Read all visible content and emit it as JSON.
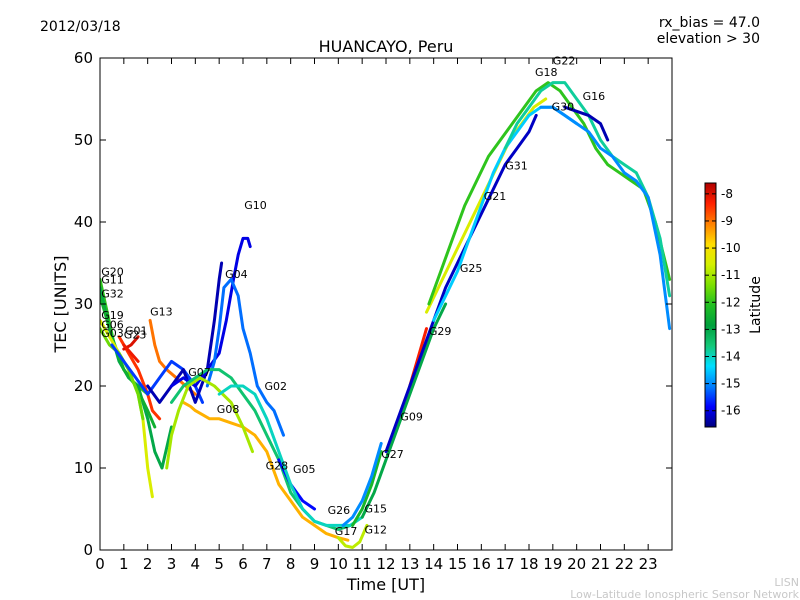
{
  "header": {
    "date": "2012/03/18",
    "rx_bias": "rx_bias = 47.0",
    "elevation": "elevation > 30"
  },
  "footer": {
    "org_short": "LISN",
    "org_long": "Low-Latitude Ionospheric Sensor Network"
  },
  "colorbar": {
    "label": "Latitude",
    "ticks": [
      "-8",
      "-9",
      "-10",
      "-11",
      "-12",
      "-13",
      "-14",
      "-15",
      "-16"
    ],
    "range": [
      -16.6,
      -7.6
    ],
    "colors": [
      "#00007f",
      "#0000ff",
      "#007fff",
      "#00dfff",
      "#14c878",
      "#00a03c",
      "#22c022",
      "#7ee000",
      "#d4f000",
      "#ffdc00",
      "#ff8000",
      "#ff2000",
      "#b00000"
    ]
  },
  "chart_data": {
    "type": "line",
    "title": "HUANCAYO, Peru",
    "xlabel": "Time [UT]",
    "ylabel": "TEC [UNITS]",
    "xlim": [
      0,
      24
    ],
    "ylim": [
      0,
      60
    ],
    "xticks": [
      "0",
      "1",
      "2",
      "3",
      "4",
      "5",
      "6",
      "7",
      "8",
      "9",
      "10",
      "11",
      "12",
      "13",
      "14",
      "15",
      "16",
      "17",
      "18",
      "19",
      "20",
      "21",
      "22",
      "23"
    ],
    "yticks": [
      "0",
      "10",
      "20",
      "30",
      "40",
      "50",
      "60"
    ],
    "grid": false,
    "colorbar_label": "Latitude",
    "series": [
      {
        "name": "G20",
        "lat": -12.0,
        "x": [
          0,
          0.3,
          0.6,
          1.0,
          1.4,
          1.8,
          2.0
        ],
        "y": [
          33,
          29,
          25,
          22,
          20.5,
          19.5,
          19
        ]
      },
      {
        "name": "G11",
        "lat": -13.0,
        "x": [
          0,
          0.4,
          0.8,
          1.2,
          1.6,
          2.0,
          2.3,
          2.6,
          3.0
        ],
        "y": [
          32,
          27,
          23,
          21,
          20,
          16,
          12,
          10,
          15
        ]
      },
      {
        "name": "G32",
        "lat": -12.5,
        "x": [
          0,
          0.5,
          1.0,
          1.5,
          2.0,
          2.3
        ],
        "y": [
          31,
          26,
          22,
          20,
          17,
          15
        ]
      },
      {
        "name": "G19",
        "lat": -10.5,
        "x": [
          0,
          0.4,
          0.8,
          1.2,
          1.6,
          1.8,
          2.0,
          2.2
        ],
        "y": [
          28,
          26,
          24,
          22,
          19,
          16,
          10,
          6.5
        ]
      },
      {
        "name": "G06",
        "lat": -11.5,
        "x": [
          0,
          0.4,
          0.8,
          1.2,
          1.6,
          1.8
        ],
        "y": [
          27,
          25,
          24,
          22,
          19,
          16
        ]
      },
      {
        "name": "G03",
        "lat": -8.5,
        "x": [
          0.8,
          1.2,
          1.6,
          2.0,
          2.2,
          2.5
        ],
        "y": [
          26,
          24,
          22,
          19,
          17,
          16
        ]
      },
      {
        "name": "G01",
        "lat": -8.0,
        "x": [
          1.0,
          1.3,
          1.6
        ],
        "y": [
          24.5,
          25,
          26
        ]
      },
      {
        "name": "G23",
        "lat": -8.2,
        "x": [
          1.0,
          1.3,
          1.6
        ],
        "y": [
          25,
          24,
          23
        ]
      },
      {
        "name": "G13",
        "lat": -9.0,
        "x": [
          2.1,
          2.3,
          2.5,
          2.8,
          3.2,
          3.6,
          4.0
        ],
        "y": [
          28,
          25,
          23,
          22,
          21,
          20,
          19
        ]
      },
      {
        "name": "G07",
        "lat": -15.5,
        "x": [
          0.5,
          1,
          1.5,
          2,
          2.5,
          3,
          3.5,
          4,
          4.3
        ],
        "y": [
          25,
          23,
          21,
          19,
          21,
          23,
          22,
          20,
          18
        ]
      },
      {
        "name": "G04",
        "lat": -16.3,
        "x": [
          2.0,
          2.5,
          3.0,
          3.5,
          4.0,
          4.5,
          4.8,
          5.0,
          5.1
        ],
        "y": [
          20,
          18,
          20,
          22,
          18,
          22,
          28,
          33,
          35
        ]
      },
      {
        "name": "G10",
        "lat": -16.0,
        "x": [
          3.0,
          3.5,
          4.0,
          4.5,
          5.0,
          5.3,
          5.6,
          5.8,
          6.0,
          6.2,
          6.3
        ],
        "y": [
          20,
          21,
          20,
          22,
          24,
          28,
          33,
          36,
          38,
          38,
          37
        ]
      },
      {
        "name": "G02",
        "lat": -15.2,
        "x": [
          4.5,
          4.8,
          5.0,
          5.2,
          5.5,
          5.8,
          6.0,
          6.3,
          6.6,
          7.0,
          7.3,
          7.7
        ],
        "y": [
          20,
          23,
          27,
          32,
          33,
          31,
          27,
          24,
          20,
          18,
          17,
          14
        ]
      },
      {
        "name": "G08",
        "lat": -9.5,
        "x": [
          3.5,
          3.8,
          4.0,
          4.3,
          4.6,
          5.0,
          5.5,
          6.0,
          6.5,
          7.0,
          7.5,
          8.0,
          8.5,
          9.0,
          9.5,
          10.0,
          10.4
        ],
        "y": [
          18,
          17.5,
          17,
          16.5,
          16,
          16,
          15.5,
          15,
          14,
          12,
          8,
          6,
          4,
          3,
          2,
          1.5,
          1.2
        ]
      },
      {
        "name": "G09",
        "lat": -11.0,
        "x": [
          2.8,
          3.0,
          3.3,
          3.7,
          4.2,
          4.8,
          5.5,
          6.0,
          6.4
        ],
        "y": [
          10,
          14,
          17,
          20,
          21,
          20,
          18,
          15,
          12
        ]
      },
      {
        "name": "G28",
        "lat": -13.5,
        "x": [
          3.0,
          3.5,
          4.0,
          4.5,
          5.0,
          5.5,
          6.0,
          6.5,
          7.0,
          7.5,
          8.0,
          8.5,
          9.0,
          9.5,
          10.0,
          10.5
        ],
        "y": [
          18,
          20,
          21,
          22,
          22,
          21,
          19,
          17,
          14,
          11,
          7,
          5,
          3.5,
          3,
          2.5,
          3
        ]
      },
      {
        "name": "G05",
        "lat": -15.8,
        "x": [
          7.5,
          8.0,
          8.5,
          9.0
        ],
        "y": [
          11,
          8,
          6,
          5
        ]
      },
      {
        "name": "G26",
        "lat": -14.0,
        "x": [
          5.0,
          5.5,
          6.0,
          6.5,
          7.0,
          7.5,
          8.0,
          8.5,
          9.0,
          9.5,
          10.0,
          10.5,
          11.0
        ],
        "y": [
          19,
          20,
          20,
          19,
          16,
          12,
          8,
          5,
          3.5,
          3,
          3,
          3,
          4
        ]
      },
      {
        "name": "G17",
        "lat": -10.8,
        "x": [
          10.0,
          10.3,
          10.6,
          10.9,
          11.2
        ],
        "y": [
          1.5,
          0.5,
          0.3,
          1,
          3
        ]
      },
      {
        "name": "G12",
        "lat": -12.3,
        "x": [
          10.6,
          11.0,
          11.4,
          11.8
        ],
        "y": [
          3,
          5,
          8,
          12
        ]
      },
      {
        "name": "G15",
        "lat": -15.0,
        "x": [
          10.2,
          10.6,
          11.0,
          11.4,
          11.8
        ],
        "y": [
          3,
          4,
          6,
          9,
          13
        ]
      },
      {
        "name": "G27",
        "lat": -13.0,
        "x": [
          11.0,
          11.5,
          12.0,
          12.5,
          13.0,
          13.5,
          14.0,
          14.5
        ],
        "y": [
          4,
          7,
          11,
          15,
          19,
          23,
          27,
          30
        ]
      },
      {
        "name": "G29",
        "lat": -8.3,
        "x": [
          13.0,
          13.3,
          13.7
        ],
        "y": [
          20,
          23,
          27
        ]
      },
      {
        "name": "G25",
        "lat": -16.2,
        "x": [
          12.0,
          12.5,
          13.0,
          13.5,
          14.0,
          14.5,
          15.0,
          15.5,
          16.0,
          16.5,
          17.0,
          17.5,
          18.0,
          18.3
        ],
        "y": [
          12,
          16,
          20,
          24,
          28,
          32,
          35,
          38,
          41,
          44,
          47,
          49,
          51,
          53
        ]
      },
      {
        "name": "G21",
        "lat": -10.5,
        "x": [
          13.7,
          14.2,
          14.7,
          15.2,
          15.7,
          16.2,
          16.7,
          17.2,
          17.7,
          18.2,
          18.7
        ],
        "y": [
          29,
          32,
          35,
          38,
          41,
          44,
          47,
          50,
          52,
          54,
          55
        ]
      },
      {
        "name": "G31",
        "lat": -14.5,
        "x": [
          14.0,
          14.5,
          15.0,
          15.5,
          16.0,
          16.5,
          17.0,
          17.5,
          18.0,
          18.5,
          19.0,
          19.5,
          20.0
        ],
        "y": [
          28,
          31,
          34,
          38,
          42,
          46,
          49,
          51,
          53,
          54,
          54,
          53,
          52
        ]
      },
      {
        "name": "G18",
        "lat": -12.0,
        "x": [
          13.8,
          14.3,
          14.8,
          15.3,
          15.8,
          16.3,
          16.8,
          17.3,
          17.8,
          18.3,
          18.8,
          19.3,
          19.8,
          20.3,
          20.8,
          21.3,
          21.8,
          22.3,
          22.8,
          23.3,
          23.9
        ],
        "y": [
          30,
          34,
          38,
          42,
          45,
          48,
          50,
          52,
          54,
          56,
          57,
          56,
          54,
          52,
          49,
          47,
          46,
          45,
          44,
          40,
          33
        ]
      },
      {
        "name": "G22",
        "lat": -13.8,
        "x": [
          17.0,
          17.5,
          18.0,
          18.5,
          19.0,
          19.5,
          20.0,
          20.5,
          21.0,
          21.5,
          22.0,
          22.5,
          23.0,
          23.5,
          23.9
        ],
        "y": [
          49,
          52,
          54,
          56,
          57,
          57,
          55,
          53,
          50,
          48,
          47,
          46,
          43,
          38,
          31
        ]
      },
      {
        "name": "G16",
        "lat": -15.0,
        "x": [
          18.5,
          19.0,
          19.5,
          20.0,
          20.5,
          21.0,
          21.5,
          22.0,
          22.5,
          23.0,
          23.5,
          23.9
        ],
        "y": [
          54,
          54,
          53,
          52,
          51,
          49,
          48,
          46,
          45,
          43,
          36,
          27
        ]
      },
      {
        "name": "G30",
        "lat": -16.3,
        "x": [
          19.5,
          20.0,
          20.5,
          21.0,
          21.3
        ],
        "y": [
          54,
          53.5,
          53,
          52,
          50
        ]
      }
    ],
    "annotations": [
      {
        "text": "G20",
        "x": 0.05,
        "y": 33.5
      },
      {
        "text": "G11",
        "x": 0.05,
        "y": 32.5
      },
      {
        "text": "G32",
        "x": 0.05,
        "y": 30.8
      },
      {
        "text": "G19",
        "x": 0.05,
        "y": 28.2
      },
      {
        "text": "G06",
        "x": 0.05,
        "y": 27.0
      },
      {
        "text": "G03",
        "x": 0.05,
        "y": 26.0
      },
      {
        "text": "G01",
        "x": 1.05,
        "y": 26.3
      },
      {
        "text": "G23",
        "x": 1.0,
        "y": 25.8
      },
      {
        "text": "G13",
        "x": 2.1,
        "y": 28.6
      },
      {
        "text": "G07",
        "x": 3.7,
        "y": 21.2
      },
      {
        "text": "G04",
        "x": 5.25,
        "y": 33.2
      },
      {
        "text": "G10",
        "x": 6.05,
        "y": 41.6
      },
      {
        "text": "G02",
        "x": 6.9,
        "y": 19.5
      },
      {
        "text": "G08",
        "x": 4.9,
        "y": 16.7
      },
      {
        "text": "G28",
        "x": 6.95,
        "y": 9.8
      },
      {
        "text": "G05",
        "x": 8.1,
        "y": 9.4
      },
      {
        "text": "G26",
        "x": 9.55,
        "y": 4.4
      },
      {
        "text": "G17",
        "x": 9.85,
        "y": 1.8
      },
      {
        "text": "G15",
        "x": 11.1,
        "y": 4.6
      },
      {
        "text": "G12",
        "x": 11.1,
        "y": 2.0
      },
      {
        "text": "G27",
        "x": 11.8,
        "y": 11.2
      },
      {
        "text": "G09",
        "x": 12.6,
        "y": 15.8
      },
      {
        "text": "G29",
        "x": 13.8,
        "y": 26.2
      },
      {
        "text": "G25",
        "x": 15.1,
        "y": 33.9
      },
      {
        "text": "G21",
        "x": 16.1,
        "y": 42.7
      },
      {
        "text": "G31",
        "x": 17.0,
        "y": 46.4
      },
      {
        "text": "G18",
        "x": 18.25,
        "y": 57.8
      },
      {
        "text": "G22",
        "x": 19.0,
        "y": 59.2
      },
      {
        "text": "G30",
        "x": 18.95,
        "y": 53.6
      },
      {
        "text": "G16",
        "x": 20.25,
        "y": 54.9
      }
    ]
  }
}
